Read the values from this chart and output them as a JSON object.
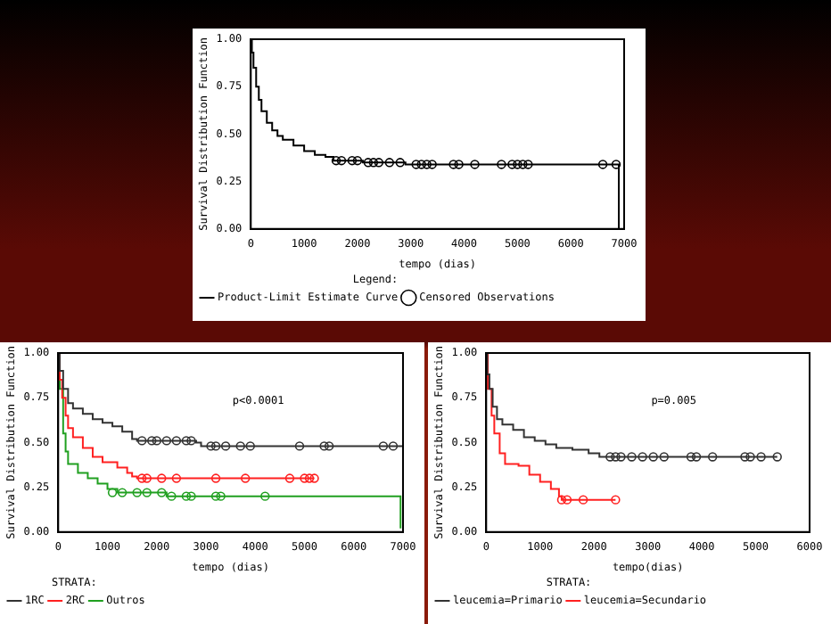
{
  "chart_data": [
    {
      "type": "step",
      "xlabel": "tempo (dias)",
      "ylabel": "Survival Distribution Function",
      "legend_title": "Legend:",
      "legend": "bottom",
      "grid": false,
      "xlim": [
        0,
        7000
      ],
      "xticks": [
        0,
        1000,
        2000,
        3000,
        4000,
        5000,
        6000,
        7000
      ],
      "ylim": [
        0,
        1
      ],
      "yticks": [
        {
          "value": 0,
          "label": "0.00"
        },
        {
          "value": 0.25,
          "label": "0.25"
        },
        {
          "value": 0.5,
          "label": "0.50"
        },
        {
          "value": 0.75,
          "label": "0.75"
        },
        {
          "value": 1,
          "label": "1.00"
        }
      ],
      "series": [
        {
          "name": "Product-Limit Estimate Curve",
          "marker": "none",
          "color": "#000000",
          "x": [
            0,
            20,
            50,
            100,
            150,
            200,
            300,
            400,
            500,
            600,
            800,
            1000,
            1200,
            1400,
            1550,
            2100,
            2900,
            6900,
            6900
          ],
          "values": [
            1,
            0.93,
            0.85,
            0.75,
            0.68,
            0.62,
            0.56,
            0.52,
            0.49,
            0.47,
            0.44,
            0.41,
            0.39,
            0.38,
            0.36,
            0.35,
            0.34,
            0.34,
            0
          ]
        },
        {
          "name": "Censored Observations",
          "type": "scatter",
          "marker": "circle",
          "color": "#000000",
          "x": [
            1600,
            1700,
            1900,
            2000,
            2200,
            2300,
            2400,
            2600,
            2800,
            3100,
            3200,
            3300,
            3400,
            3800,
            3900,
            4200,
            4700,
            4900,
            5000,
            5100,
            5200,
            6600,
            6850
          ],
          "values": [
            0.36,
            0.36,
            0.36,
            0.36,
            0.35,
            0.35,
            0.35,
            0.35,
            0.35,
            0.34,
            0.34,
            0.34,
            0.34,
            0.34,
            0.34,
            0.34,
            0.34,
            0.34,
            0.34,
            0.34,
            0.34,
            0.34,
            0.34
          ]
        }
      ]
    },
    {
      "type": "step",
      "xlabel": "tempo (dias)",
      "ylabel": "Survival Distribution Function",
      "legend_title": "STRATA:",
      "legend": "bottom",
      "grid": false,
      "annotations": [
        "p<0.0001"
      ],
      "xlim": [
        0,
        7000
      ],
      "xticks": [
        0,
        1000,
        2000,
        3000,
        4000,
        5000,
        6000,
        7000
      ],
      "ylim": [
        0,
        1
      ],
      "yticks": [
        {
          "value": 0,
          "label": "0.00"
        },
        {
          "value": 0.25,
          "label": "0.25"
        },
        {
          "value": 0.5,
          "label": "0.50"
        },
        {
          "value": 0.75,
          "label": "0.75"
        },
        {
          "value": 1,
          "label": "1.00"
        }
      ],
      "series": [
        {
          "name": "1RC",
          "marker": "none",
          "color": "#333333",
          "x": [
            0,
            30,
            100,
            200,
            300,
            500,
            700,
            900,
            1100,
            1300,
            1500,
            1600,
            2800,
            2900,
            7000
          ],
          "values": [
            1,
            0.9,
            0.8,
            0.72,
            0.69,
            0.66,
            0.63,
            0.61,
            0.59,
            0.56,
            0.52,
            0.51,
            0.5,
            0.48,
            0.48
          ]
        },
        {
          "name": "2RC",
          "marker": "none",
          "color": "#ff2020",
          "x": [
            0,
            30,
            80,
            150,
            200,
            300,
            500,
            700,
            900,
            1200,
            1400,
            1500,
            1600,
            5200
          ],
          "values": [
            1,
            0.85,
            0.75,
            0.65,
            0.58,
            0.53,
            0.47,
            0.42,
            0.39,
            0.36,
            0.33,
            0.31,
            0.3,
            0.3
          ]
        },
        {
          "name": "Outros",
          "marker": "none",
          "color": "#20a020",
          "x": [
            0,
            30,
            100,
            150,
            200,
            400,
            600,
            800,
            1000,
            1200,
            2100,
            2200,
            6950,
            6950
          ],
          "values": [
            1,
            0.8,
            0.55,
            0.45,
            0.38,
            0.33,
            0.3,
            0.27,
            0.24,
            0.22,
            0.22,
            0.2,
            0.2,
            0.02
          ]
        },
        {
          "type": "scatter",
          "marker": "circle",
          "color": "#333333",
          "x": [
            1700,
            1900,
            2000,
            2200,
            2400,
            2600,
            2700,
            3100,
            3200,
            3400,
            3700,
            3900,
            4900,
            5400,
            5500,
            6600,
            6800
          ],
          "values": [
            0.51,
            0.51,
            0.51,
            0.51,
            0.51,
            0.51,
            0.51,
            0.48,
            0.48,
            0.48,
            0.48,
            0.48,
            0.48,
            0.48,
            0.48,
            0.48,
            0.48
          ]
        },
        {
          "type": "scatter",
          "marker": "circle",
          "color": "#ff2020",
          "x": [
            1700,
            1800,
            2100,
            2400,
            3200,
            3800,
            4700,
            5000,
            5100,
            5200
          ],
          "values": [
            0.3,
            0.3,
            0.3,
            0.3,
            0.3,
            0.3,
            0.3,
            0.3,
            0.3,
            0.3
          ]
        },
        {
          "type": "scatter",
          "marker": "circle",
          "color": "#20a020",
          "x": [
            1100,
            1300,
            1600,
            1800,
            2100,
            2300,
            2600,
            2700,
            3200,
            3300,
            4200
          ],
          "values": [
            0.22,
            0.22,
            0.22,
            0.22,
            0.22,
            0.2,
            0.2,
            0.2,
            0.2,
            0.2,
            0.2
          ]
        }
      ]
    },
    {
      "type": "step",
      "xlabel": "tempo(dias)",
      "ylabel": "Survival Distribution Function",
      "legend_title": "STRATA:",
      "legend": "bottom",
      "grid": false,
      "annotations": [
        "p=0.005"
      ],
      "xlim": [
        0,
        6000
      ],
      "xticks": [
        0,
        1000,
        2000,
        3000,
        4000,
        5000,
        6000
      ],
      "ylim": [
        0,
        1
      ],
      "yticks": [
        {
          "value": 0,
          "label": "0.00"
        },
        {
          "value": 0.25,
          "label": "0.25"
        },
        {
          "value": 0.5,
          "label": "0.50"
        },
        {
          "value": 0.75,
          "label": "0.75"
        },
        {
          "value": 1,
          "label": "1.00"
        }
      ],
      "series": [
        {
          "name": "leucemia=Primario",
          "marker": "none",
          "color": "#333333",
          "x": [
            0,
            20,
            60,
            120,
            200,
            300,
            500,
            700,
            900,
            1100,
            1300,
            1600,
            1900,
            2100,
            5400
          ],
          "values": [
            1,
            0.88,
            0.8,
            0.7,
            0.63,
            0.6,
            0.57,
            0.53,
            0.51,
            0.49,
            0.47,
            0.46,
            0.44,
            0.42,
            0.42
          ]
        },
        {
          "name": "leucemia=Secundario",
          "marker": "none",
          "color": "#ff2020",
          "x": [
            0,
            30,
            100,
            150,
            250,
            350,
            600,
            800,
            1000,
            1200,
            1350,
            1400,
            2400
          ],
          "values": [
            1,
            0.8,
            0.65,
            0.55,
            0.44,
            0.38,
            0.37,
            0.32,
            0.28,
            0.24,
            0.2,
            0.18,
            0.18
          ]
        },
        {
          "type": "scatter",
          "marker": "circle",
          "color": "#333333",
          "x": [
            2300,
            2400,
            2500,
            2700,
            2900,
            3100,
            3300,
            3800,
            3900,
            4200,
            4800,
            4900,
            5100,
            5400
          ],
          "values": [
            0.42,
            0.42,
            0.42,
            0.42,
            0.42,
            0.42,
            0.42,
            0.42,
            0.42,
            0.42,
            0.42,
            0.42,
            0.42,
            0.42
          ]
        },
        {
          "type": "scatter",
          "marker": "circle",
          "color": "#ff2020",
          "x": [
            1400,
            1500,
            1800,
            2400
          ],
          "values": [
            0.18,
            0.18,
            0.18,
            0.18
          ]
        }
      ]
    }
  ]
}
